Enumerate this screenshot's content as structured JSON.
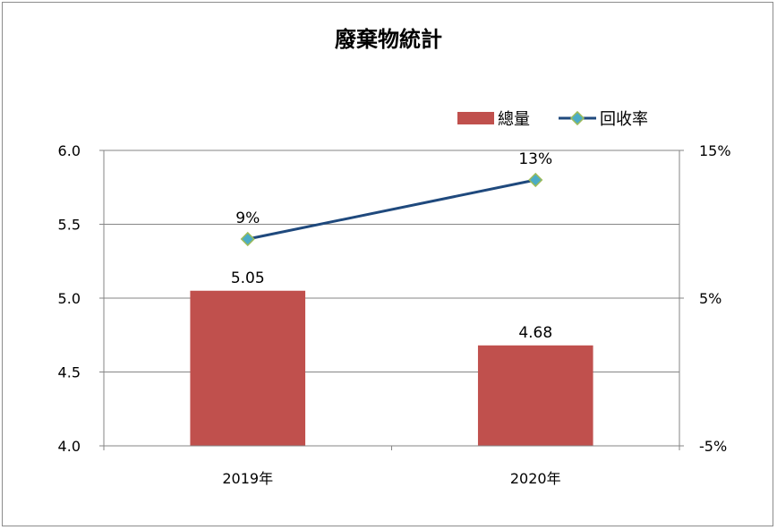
{
  "chart_data": {
    "type": "bar",
    "title": "廢棄物統計",
    "categories": [
      "2019年",
      "2020年"
    ],
    "series": [
      {
        "name": "總量",
        "type": "bar",
        "axis": "left",
        "values": [
          5.05,
          4.68
        ],
        "data_labels": [
          "5.05",
          "4.68"
        ],
        "color": "#c0504d"
      },
      {
        "name": "回收率",
        "type": "line",
        "axis": "right",
        "values": [
          9,
          13
        ],
        "data_labels": [
          "9%",
          "13%"
        ],
        "color": "#1f497d",
        "marker_color": "#4bacc6",
        "marker_border": "#9bbb59"
      }
    ],
    "y_left": {
      "ylim": [
        4.0,
        6.0
      ],
      "ticks": [
        "4.0",
        "4.5",
        "5.0",
        "5.5",
        "6.0"
      ]
    },
    "y_right": {
      "ylim": [
        -5,
        15
      ],
      "ticks": [
        "-5%",
        "5%",
        "15%"
      ]
    },
    "grid": true,
    "legend": "top-right"
  }
}
